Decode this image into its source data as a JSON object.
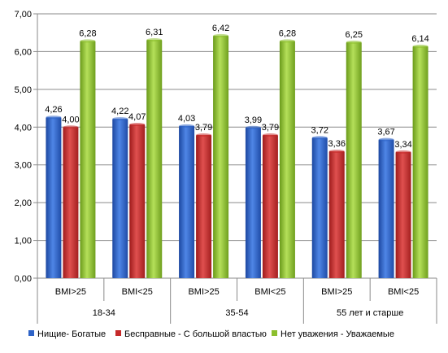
{
  "chart_data": {
    "type": "bar",
    "title": "",
    "xlabel": "",
    "ylabel": "",
    "ylim": [
      0,
      7
    ],
    "yticks": [
      "0,00",
      "1,00",
      "2,00",
      "3,00",
      "4,00",
      "5,00",
      "6,00",
      "7,00"
    ],
    "groups": [
      {
        "label": "18-34",
        "categories": [
          "BMI>25",
          "BMI<25"
        ]
      },
      {
        "label": "35-54",
        "categories": [
          "BMI>25",
          "BMI<25"
        ]
      },
      {
        "label": "55 лет и старше",
        "categories": [
          "BMI>25",
          "BMI<25"
        ]
      }
    ],
    "categories": [
      "BMI>25",
      "BMI<25",
      "BMI>25",
      "BMI<25",
      "BMI>25",
      "BMI<25"
    ],
    "series": [
      {
        "name": "Нищие- Богатые",
        "color": "#2e63c7",
        "values": [
          4.26,
          4.22,
          4.03,
          3.99,
          3.72,
          3.67
        ],
        "labels": [
          "4,26",
          "4,22",
          "4,03",
          "3,99",
          "3,72",
          "3,67"
        ]
      },
      {
        "name": "Бесправные - С большой властью",
        "color": "#c62a2a",
        "values": [
          4.0,
          4.07,
          3.79,
          3.79,
          3.36,
          3.34
        ],
        "labels": [
          "4,00",
          "4,07",
          "3,79",
          "3,79",
          "3,36",
          "3,34"
        ]
      },
      {
        "name": "Нет уважения - Уважаемые",
        "color": "#8cbf2e",
        "values": [
          6.28,
          6.31,
          6.42,
          6.28,
          6.25,
          6.14
        ],
        "labels": [
          "6,28",
          "6,31",
          "6,42",
          "6,28",
          "6,25",
          "6,14"
        ]
      }
    ],
    "legend_position": "bottom",
    "grid": true
  }
}
